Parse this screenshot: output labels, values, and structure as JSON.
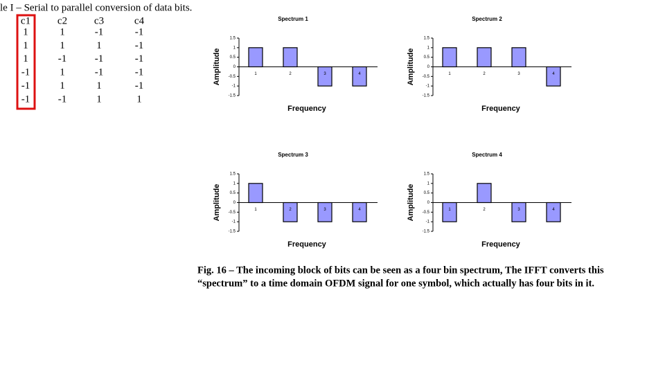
{
  "table": {
    "title": "le I – Serial to parallel conversion of data bits.",
    "header": [
      "c1",
      "c2",
      "c3",
      "c4"
    ],
    "rows": [
      [
        1,
        1,
        -1,
        -1
      ],
      [
        1,
        1,
        1,
        -1
      ],
      [
        1,
        -1,
        -1,
        -1
      ],
      [
        -1,
        1,
        -1,
        -1
      ],
      [
        -1,
        1,
        1,
        -1
      ],
      [
        -1,
        -1,
        1,
        1
      ]
    ]
  },
  "chart_data": [
    {
      "type": "bar",
      "title": "Spectrum 1",
      "xlabel": "Frequency",
      "ylabel": "Amplitude",
      "categories": [
        "1",
        "2",
        "3",
        "4"
      ],
      "values": [
        1,
        1,
        -1,
        -1
      ],
      "color": "#9999ff",
      "ylim": [
        -1.5,
        1.5
      ],
      "yticks": [
        -1.5,
        -1,
        -0.5,
        0,
        0.5,
        1,
        1.5
      ]
    },
    {
      "type": "bar",
      "title": "Spectrum 2",
      "xlabel": "Frequency",
      "ylabel": "Amplitude",
      "categories": [
        "1",
        "2",
        "3",
        "4"
      ],
      "values": [
        1,
        1,
        1,
        -1
      ],
      "color": "#9999ff",
      "ylim": [
        -1.5,
        1.5
      ],
      "yticks": [
        -1.5,
        -1,
        -0.5,
        0,
        0.5,
        1,
        1.5
      ]
    },
    {
      "type": "bar",
      "title": "Spectrum 3",
      "xlabel": "Frequency",
      "ylabel": "Amplitude",
      "categories": [
        "1",
        "2",
        "3",
        "4"
      ],
      "values": [
        1,
        -1,
        -1,
        -1
      ],
      "color": "#9999ff",
      "ylim": [
        -1.5,
        1.5
      ],
      "yticks": [
        -1.5,
        -1,
        -0.5,
        0,
        0.5,
        1,
        1.5
      ]
    },
    {
      "type": "bar",
      "title": "Spectrum 4",
      "xlabel": "Frequency",
      "ylabel": "Amplitude",
      "categories": [
        "1",
        "2",
        "3",
        "4"
      ],
      "values": [
        -1,
        1,
        -1,
        -1
      ],
      "color": "#9999ff",
      "ylim": [
        -1.5,
        1.5
      ],
      "yticks": [
        -1.5,
        -1,
        -0.5,
        0,
        0.5,
        1,
        1.5
      ]
    }
  ],
  "caption": {
    "lines": [
      "Fig. 16 – The incoming block of bits can be seen as a four bin spectrum, The IFFT converts this",
      "“spectrum” to a time domain OFDM signal for one symbol, which actually has four bits in it."
    ]
  }
}
